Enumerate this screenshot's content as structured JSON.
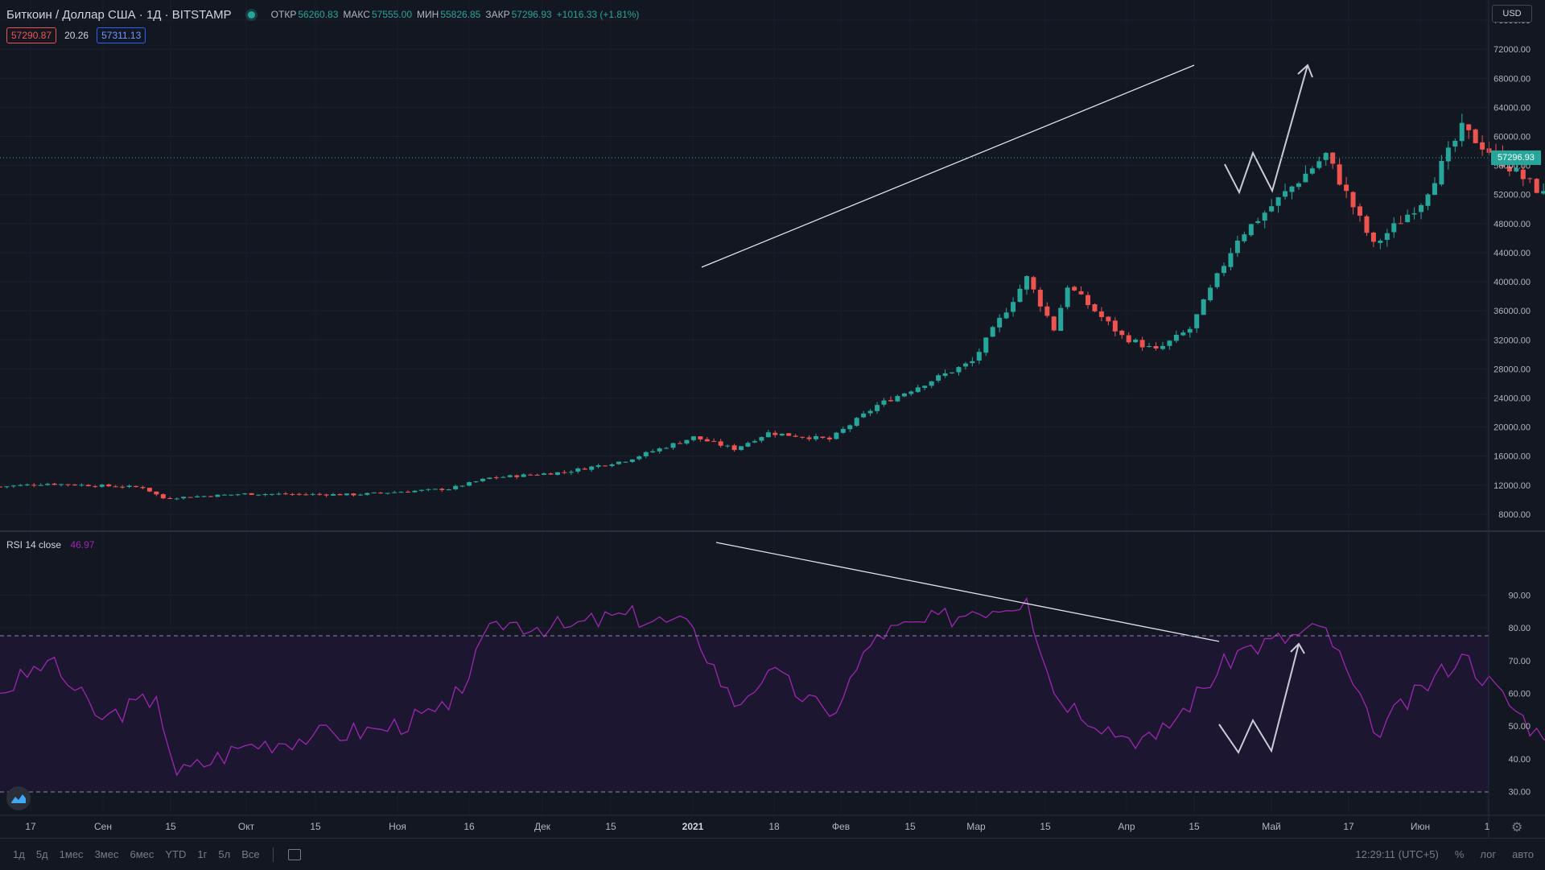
{
  "legend": {
    "title": "Биткоин / Доллар США · 1Д · BITSTAMP",
    "open_label": "ОТКР",
    "open_value": "56260.83",
    "high_label": "МАКС",
    "high_value": "57555.00",
    "low_label": "МИН",
    "low_value": "55826.85",
    "close_label": "ЗАКР",
    "close_value": "57296.93",
    "change": "+1016.33 (+1.81%)"
  },
  "quote": {
    "bid": "57290.87",
    "spread": "20.26",
    "ask": "57311.13"
  },
  "currency": "USD",
  "last_price_label": "57296.93",
  "rsi_legend": {
    "label": "RSI 14 close",
    "value": "46.97"
  },
  "time_ranges": [
    "1д",
    "5д",
    "1мес",
    "3мес",
    "6мес",
    "YTD",
    "1г",
    "5л",
    "Все"
  ],
  "footer": {
    "clock": "12:29:11 (UTC+5)",
    "percent": "%",
    "log": "лог",
    "auto": "авто"
  },
  "colors": {
    "up": "#26a69a",
    "down": "#ef5350",
    "rsi": "#9c27b0",
    "background": "#131722",
    "band": "#1e1633"
  },
  "chart_data": [
    {
      "type": "candlestick",
      "title": "Биткоин / Доллар США",
      "ylim": [
        6000,
        78000
      ],
      "y_ticks": [
        "8000.00",
        "12000.00",
        "16000.00",
        "20000.00",
        "24000.00",
        "28000.00",
        "32000.00",
        "36000.00",
        "40000.00",
        "44000.00",
        "48000.00",
        "52000.00",
        "56000.00",
        "60000.00",
        "64000.00",
        "68000.00",
        "72000.00",
        "76000.00"
      ],
      "x_tick_labels": [
        "17",
        "Сен",
        "15",
        "Окт",
        "15",
        "Ноя",
        "16",
        "Дек",
        "15",
        "2021",
        "18",
        "Фев",
        "15",
        "Мар",
        "15",
        "Апр",
        "15",
        "Май",
        "17",
        "Июн",
        "1"
      ],
      "close_path": [
        [
          "2020-08-10",
          11800
        ],
        [
          "2020-08-17",
          12200
        ],
        [
          "2020-08-31",
          11700
        ],
        [
          "2020-09-03",
          10200
        ],
        [
          "2020-09-15",
          10800
        ],
        [
          "2020-10-01",
          10700
        ],
        [
          "2020-10-15",
          11500
        ],
        [
          "2020-10-21",
          13000
        ],
        [
          "2020-11-01",
          13800
        ],
        [
          "2020-11-10",
          15400
        ],
        [
          "2020-11-20",
          18600
        ],
        [
          "2020-11-26",
          17000
        ],
        [
          "2020-12-01",
          19200
        ],
        [
          "2020-12-10",
          18300
        ],
        [
          "2020-12-17",
          23000
        ],
        [
          "2020-12-31",
          29000
        ],
        [
          "2021-01-08",
          40500
        ],
        [
          "2021-01-12",
          33500
        ],
        [
          "2021-01-14",
          39500
        ],
        [
          "2021-01-22",
          32500
        ],
        [
          "2021-01-27",
          30500
        ],
        [
          "2021-02-01",
          33500
        ],
        [
          "2021-02-08",
          46000
        ],
        [
          "2021-02-21",
          57500
        ],
        [
          "2021-02-28",
          45000
        ],
        [
          "2021-03-07",
          51000
        ],
        [
          "2021-03-13",
          61000
        ],
        [
          "2021-03-25",
          52000
        ],
        [
          "2021-04-01",
          59000
        ],
        [
          "2021-04-10",
          58000
        ],
        [
          "2021-04-14",
          63500
        ],
        [
          "2021-04-18",
          55500
        ],
        [
          "2021-04-20",
          57297
        ]
      ],
      "annotations": [
        "trend line over highs",
        "projected zigzag path"
      ]
    },
    {
      "type": "line",
      "title": "RSI 14 close",
      "ylim": [
        24,
        96
      ],
      "y_ticks": [
        "30.00",
        "40.00",
        "50.00",
        "60.00",
        "70.00",
        "80.00",
        "90.00"
      ],
      "bands": [
        30,
        70
      ],
      "series": [
        {
          "name": "RSI 14 close",
          "points": [
            [
              "2020-08-10",
              60
            ],
            [
              "2020-08-17",
              70
            ],
            [
              "2020-08-25",
              52
            ],
            [
              "2020-09-02",
              59
            ],
            [
              "2020-09-05",
              35
            ],
            [
              "2020-09-15",
              44
            ],
            [
              "2020-09-25",
              47
            ],
            [
              "2020-10-05",
              49
            ],
            [
              "2020-10-15",
              55
            ],
            [
              "2020-10-22",
              82
            ],
            [
              "2020-11-01",
              80
            ],
            [
              "2020-11-10",
              84
            ],
            [
              "2020-11-20",
              80
            ],
            [
              "2020-11-26",
              56
            ],
            [
              "2020-12-01",
              67
            ],
            [
              "2020-12-10",
              53
            ],
            [
              "2020-12-17",
              78
            ],
            [
              "2020-12-31",
              85
            ],
            [
              "2021-01-08",
              89
            ],
            [
              "2021-01-12",
              60
            ],
            [
              "2021-01-22",
              47
            ],
            [
              "2021-01-27",
              46
            ],
            [
              "2021-02-08",
              73
            ],
            [
              "2021-02-21",
              80
            ],
            [
              "2021-02-28",
              48
            ],
            [
              "2021-03-13",
              72
            ],
            [
              "2021-03-25",
              46
            ],
            [
              "2021-04-01",
              60
            ],
            [
              "2021-04-10",
              55
            ],
            [
              "2021-04-14",
              67
            ],
            [
              "2021-04-18",
              43
            ],
            [
              "2021-04-20",
              47
            ]
          ]
        }
      ],
      "annotations": [
        "declining trend line over peaks",
        "projected zigzag path"
      ]
    }
  ]
}
